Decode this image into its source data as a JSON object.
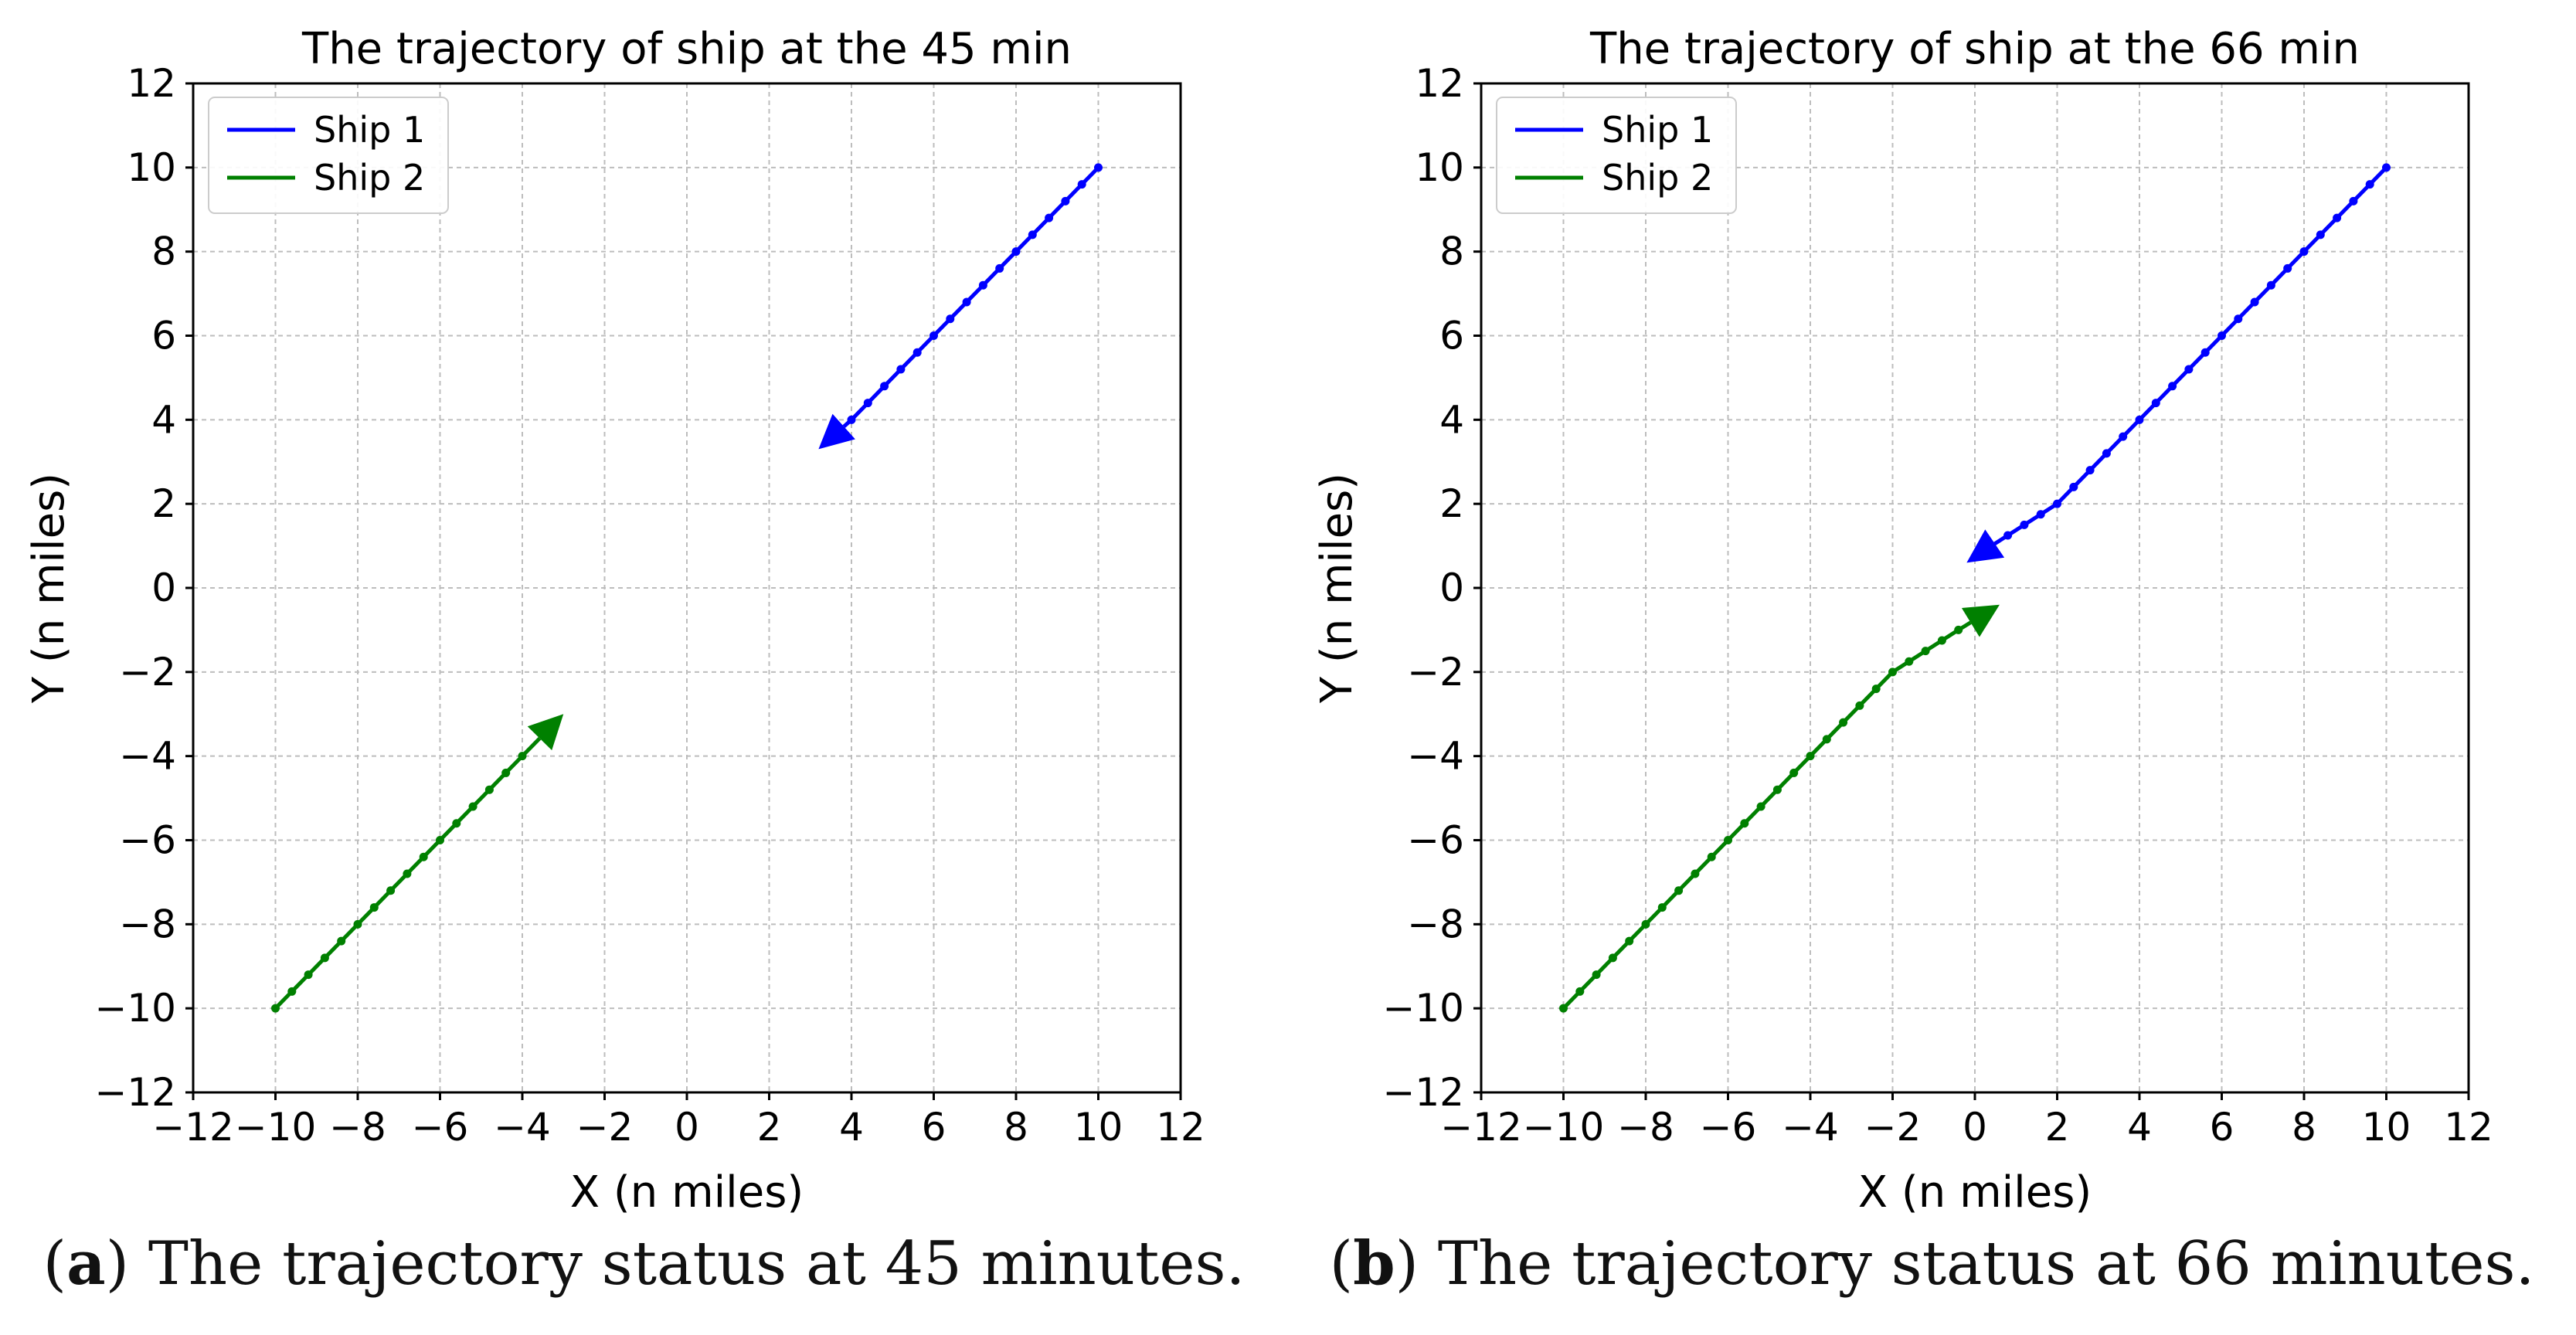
{
  "chart_data": [
    {
      "type": "line",
      "title": "The trajectory of ship at the 45 min",
      "xlabel": "X (n miles)",
      "ylabel": "Y (n miles)",
      "xlim": [
        -12,
        12
      ],
      "ylim": [
        -12,
        12
      ],
      "xticks": [
        -12,
        -10,
        -8,
        -6,
        -4,
        -2,
        0,
        2,
        4,
        6,
        8,
        10,
        12
      ],
      "yticks": [
        -12,
        -10,
        -8,
        -6,
        -4,
        -2,
        0,
        2,
        4,
        6,
        8,
        10,
        12
      ],
      "xtick_labels": [
        "−12",
        "−10",
        "−8",
        "−6",
        "−4",
        "−2",
        "0",
        "2",
        "4",
        "6",
        "8",
        "10",
        "12"
      ],
      "ytick_labels": [
        "−12",
        "−10",
        "−8",
        "−6",
        "−4",
        "−2",
        "0",
        "2",
        "4",
        "6",
        "8",
        "10",
        "12"
      ],
      "grid": true,
      "legend_position": "top-left",
      "series": [
        {
          "name": "Ship 1",
          "color": "#0000ff",
          "points": [
            [
              10,
              10
            ],
            [
              9.6,
              9.6
            ],
            [
              9.2,
              9.2
            ],
            [
              8.8,
              8.8
            ],
            [
              8.4,
              8.4
            ],
            [
              8.0,
              8.0
            ],
            [
              7.6,
              7.6
            ],
            [
              7.2,
              7.2
            ],
            [
              6.8,
              6.8
            ],
            [
              6.4,
              6.4
            ],
            [
              6.0,
              6.0
            ],
            [
              5.6,
              5.6
            ],
            [
              5.2,
              5.2
            ],
            [
              4.8,
              4.8
            ],
            [
              4.4,
              4.4
            ],
            [
              4.0,
              4.0
            ]
          ],
          "arrow_tip": [
            3.2,
            3.3
          ]
        },
        {
          "name": "Ship 2",
          "color": "#008000",
          "points": [
            [
              -10,
              -10
            ],
            [
              -9.6,
              -9.6
            ],
            [
              -9.2,
              -9.2
            ],
            [
              -8.8,
              -8.8
            ],
            [
              -8.4,
              -8.4
            ],
            [
              -8.0,
              -8.0
            ],
            [
              -7.6,
              -7.6
            ],
            [
              -7.2,
              -7.2
            ],
            [
              -6.8,
              -6.8
            ],
            [
              -6.4,
              -6.4
            ],
            [
              -6.0,
              -6.0
            ],
            [
              -5.6,
              -5.6
            ],
            [
              -5.2,
              -5.2
            ],
            [
              -4.8,
              -4.8
            ],
            [
              -4.4,
              -4.4
            ],
            [
              -4.0,
              -4.0
            ]
          ],
          "arrow_tip": [
            -3.0,
            -3.0
          ]
        }
      ]
    },
    {
      "type": "line",
      "title": "The trajectory of ship at the 66 min",
      "xlabel": "X (n miles)",
      "ylabel": "Y (n miles)",
      "xlim": [
        -12,
        12
      ],
      "ylim": [
        -12,
        12
      ],
      "xticks": [
        -12,
        -10,
        -8,
        -6,
        -4,
        -2,
        0,
        2,
        4,
        6,
        8,
        10,
        12
      ],
      "yticks": [
        -12,
        -10,
        -8,
        -6,
        -4,
        -2,
        0,
        2,
        4,
        6,
        8,
        10,
        12
      ],
      "xtick_labels": [
        "−12",
        "−10",
        "−8",
        "−6",
        "−4",
        "−2",
        "0",
        "2",
        "4",
        "6",
        "8",
        "10",
        "12"
      ],
      "ytick_labels": [
        "−12",
        "−10",
        "−8",
        "−6",
        "−4",
        "−2",
        "0",
        "2",
        "4",
        "6",
        "8",
        "10",
        "12"
      ],
      "grid": true,
      "legend_position": "top-left",
      "series": [
        {
          "name": "Ship 1",
          "color": "#0000ff",
          "points": [
            [
              10,
              10
            ],
            [
              9.6,
              9.6
            ],
            [
              9.2,
              9.2
            ],
            [
              8.8,
              8.8
            ],
            [
              8.4,
              8.4
            ],
            [
              8.0,
              8.0
            ],
            [
              7.6,
              7.6
            ],
            [
              7.2,
              7.2
            ],
            [
              6.8,
              6.8
            ],
            [
              6.4,
              6.4
            ],
            [
              6.0,
              6.0
            ],
            [
              5.6,
              5.6
            ],
            [
              5.2,
              5.2
            ],
            [
              4.8,
              4.8
            ],
            [
              4.4,
              4.4
            ],
            [
              4.0,
              4.0
            ],
            [
              3.6,
              3.6
            ],
            [
              3.2,
              3.2
            ],
            [
              2.8,
              2.8
            ],
            [
              2.4,
              2.4
            ],
            [
              2.0,
              2.0
            ],
            [
              1.6,
              1.75
            ],
            [
              1.2,
              1.5
            ],
            [
              0.8,
              1.25
            ],
            [
              0.4,
              1.0
            ]
          ],
          "arrow_tip": [
            -0.2,
            0.6
          ]
        },
        {
          "name": "Ship 2",
          "color": "#008000",
          "points": [
            [
              -10,
              -10
            ],
            [
              -9.6,
              -9.6
            ],
            [
              -9.2,
              -9.2
            ],
            [
              -8.8,
              -8.8
            ],
            [
              -8.4,
              -8.4
            ],
            [
              -8.0,
              -8.0
            ],
            [
              -7.6,
              -7.6
            ],
            [
              -7.2,
              -7.2
            ],
            [
              -6.8,
              -6.8
            ],
            [
              -6.4,
              -6.4
            ],
            [
              -6.0,
              -6.0
            ],
            [
              -5.6,
              -5.6
            ],
            [
              -5.2,
              -5.2
            ],
            [
              -4.8,
              -4.8
            ],
            [
              -4.4,
              -4.4
            ],
            [
              -4.0,
              -4.0
            ],
            [
              -3.6,
              -3.6
            ],
            [
              -3.2,
              -3.2
            ],
            [
              -2.8,
              -2.8
            ],
            [
              -2.4,
              -2.4
            ],
            [
              -2.0,
              -2.0
            ],
            [
              -1.6,
              -1.75
            ],
            [
              -1.2,
              -1.5
            ],
            [
              -0.8,
              -1.25
            ],
            [
              -0.4,
              -1.0
            ]
          ],
          "arrow_tip": [
            0.6,
            -0.4
          ]
        }
      ]
    }
  ],
  "captions": [
    {
      "letter": "a",
      "text": " The trajectory status at 45 minutes."
    },
    {
      "letter": "b",
      "text": " The trajectory status at 66 minutes."
    }
  ]
}
